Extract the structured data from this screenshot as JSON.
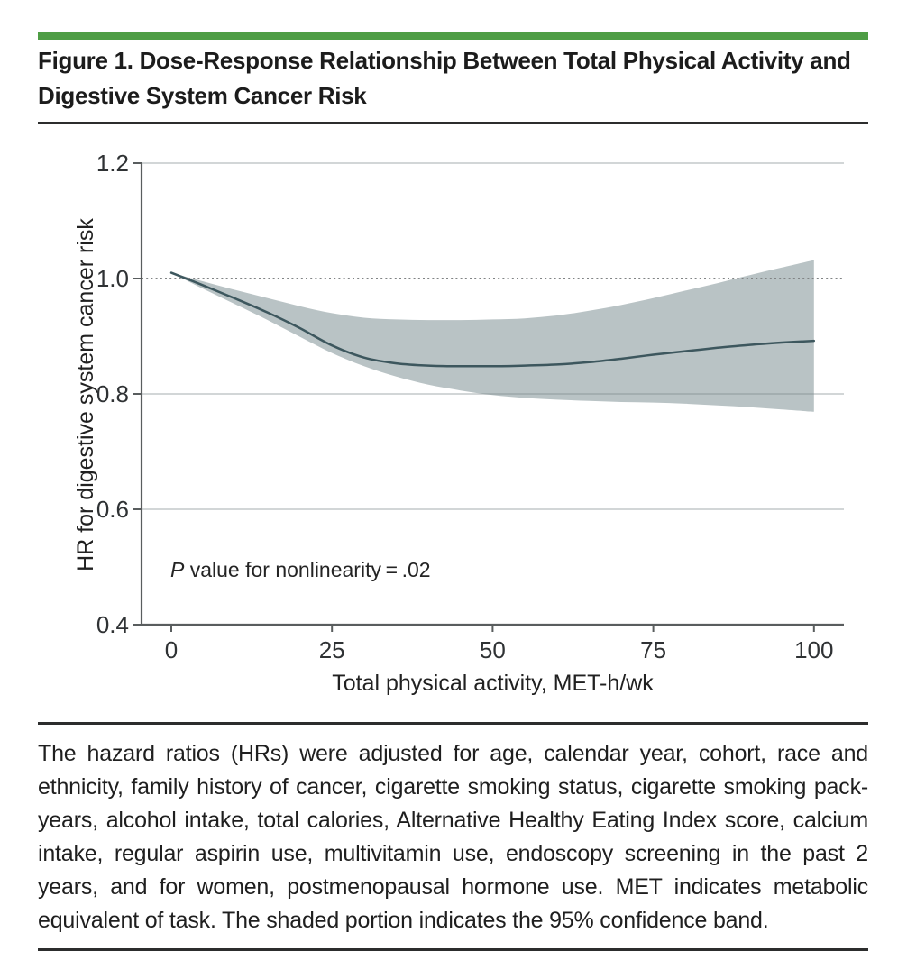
{
  "figure": {
    "title": "Figure 1. Dose-Response Relationship Between Total Physical Activity and Digestive System Cancer Risk"
  },
  "caption": {
    "text": "The hazard ratios (HRs) were adjusted for age, calendar year, cohort, race and ethnicity, family history of cancer, cigarette smoking status, cigarette smoking pack-years, alcohol intake, total calories, Alternative Healthy Eating Index score, calcium intake, regular aspirin use, multivitamin use, endoscopy screening in the past 2 years, and for women, postmenopausal hormone use. MET indicates metabolic equivalent of task. The shaded portion indicates the 95% confidence band."
  },
  "colors": {
    "accent_green": "#4e9d45",
    "band_fill": "#b9c3c5",
    "curve_stroke": "#3d575e",
    "axis_gray": "#595d5e",
    "gridline": "rgba(120,131,133,0.38)",
    "reference_dotted": "#818485",
    "text_dark": "#212121"
  },
  "chart_data": {
    "type": "line",
    "title": "Figure 1. Dose-Response Relationship Between Total Physical Activity and Digestive System Cancer Risk",
    "xlabel": "Total physical activity, MET-h/wk",
    "ylabel": "HR for digestive system cancer risk",
    "annotation": {
      "italic": "P",
      "text": " value for nonlinearity = .02"
    },
    "xlim": [
      0,
      100
    ],
    "ylim": [
      0.4,
      1.2
    ],
    "xticks": [
      0,
      25,
      50,
      75,
      100
    ],
    "yticks": [
      "0.4",
      "0.6",
      "0.8",
      "1.0",
      "1.2"
    ],
    "grid_y": [
      0.6,
      0.8,
      1.2
    ],
    "reference_line_y": 1.0,
    "legend_note": "Shaded portion indicates the 95% confidence band",
    "x": [
      0,
      5,
      10,
      15,
      20,
      25,
      30,
      35,
      40,
      45,
      50,
      55,
      60,
      65,
      70,
      75,
      80,
      85,
      90,
      95,
      100
    ],
    "series": [
      {
        "name": "HR point estimate",
        "values": [
          1.01,
          0.988,
          0.965,
          0.941,
          0.914,
          0.884,
          0.863,
          0.853,
          0.849,
          0.848,
          0.848,
          0.849,
          0.851,
          0.855,
          0.861,
          0.868,
          0.874,
          0.88,
          0.885,
          0.889,
          0.892
        ]
      },
      {
        "name": "95% CI lower",
        "values": [
          1.01,
          0.982,
          0.955,
          0.928,
          0.899,
          0.871,
          0.848,
          0.83,
          0.816,
          0.806,
          0.798,
          0.793,
          0.79,
          0.788,
          0.786,
          0.785,
          0.783,
          0.78,
          0.777,
          0.773,
          0.769
        ]
      },
      {
        "name": "95% CI upper",
        "values": [
          1.01,
          0.995,
          0.98,
          0.966,
          0.952,
          0.94,
          0.932,
          0.929,
          0.928,
          0.928,
          0.929,
          0.931,
          0.936,
          0.944,
          0.954,
          0.966,
          0.979,
          0.992,
          1.006,
          1.019,
          1.032
        ]
      }
    ]
  }
}
